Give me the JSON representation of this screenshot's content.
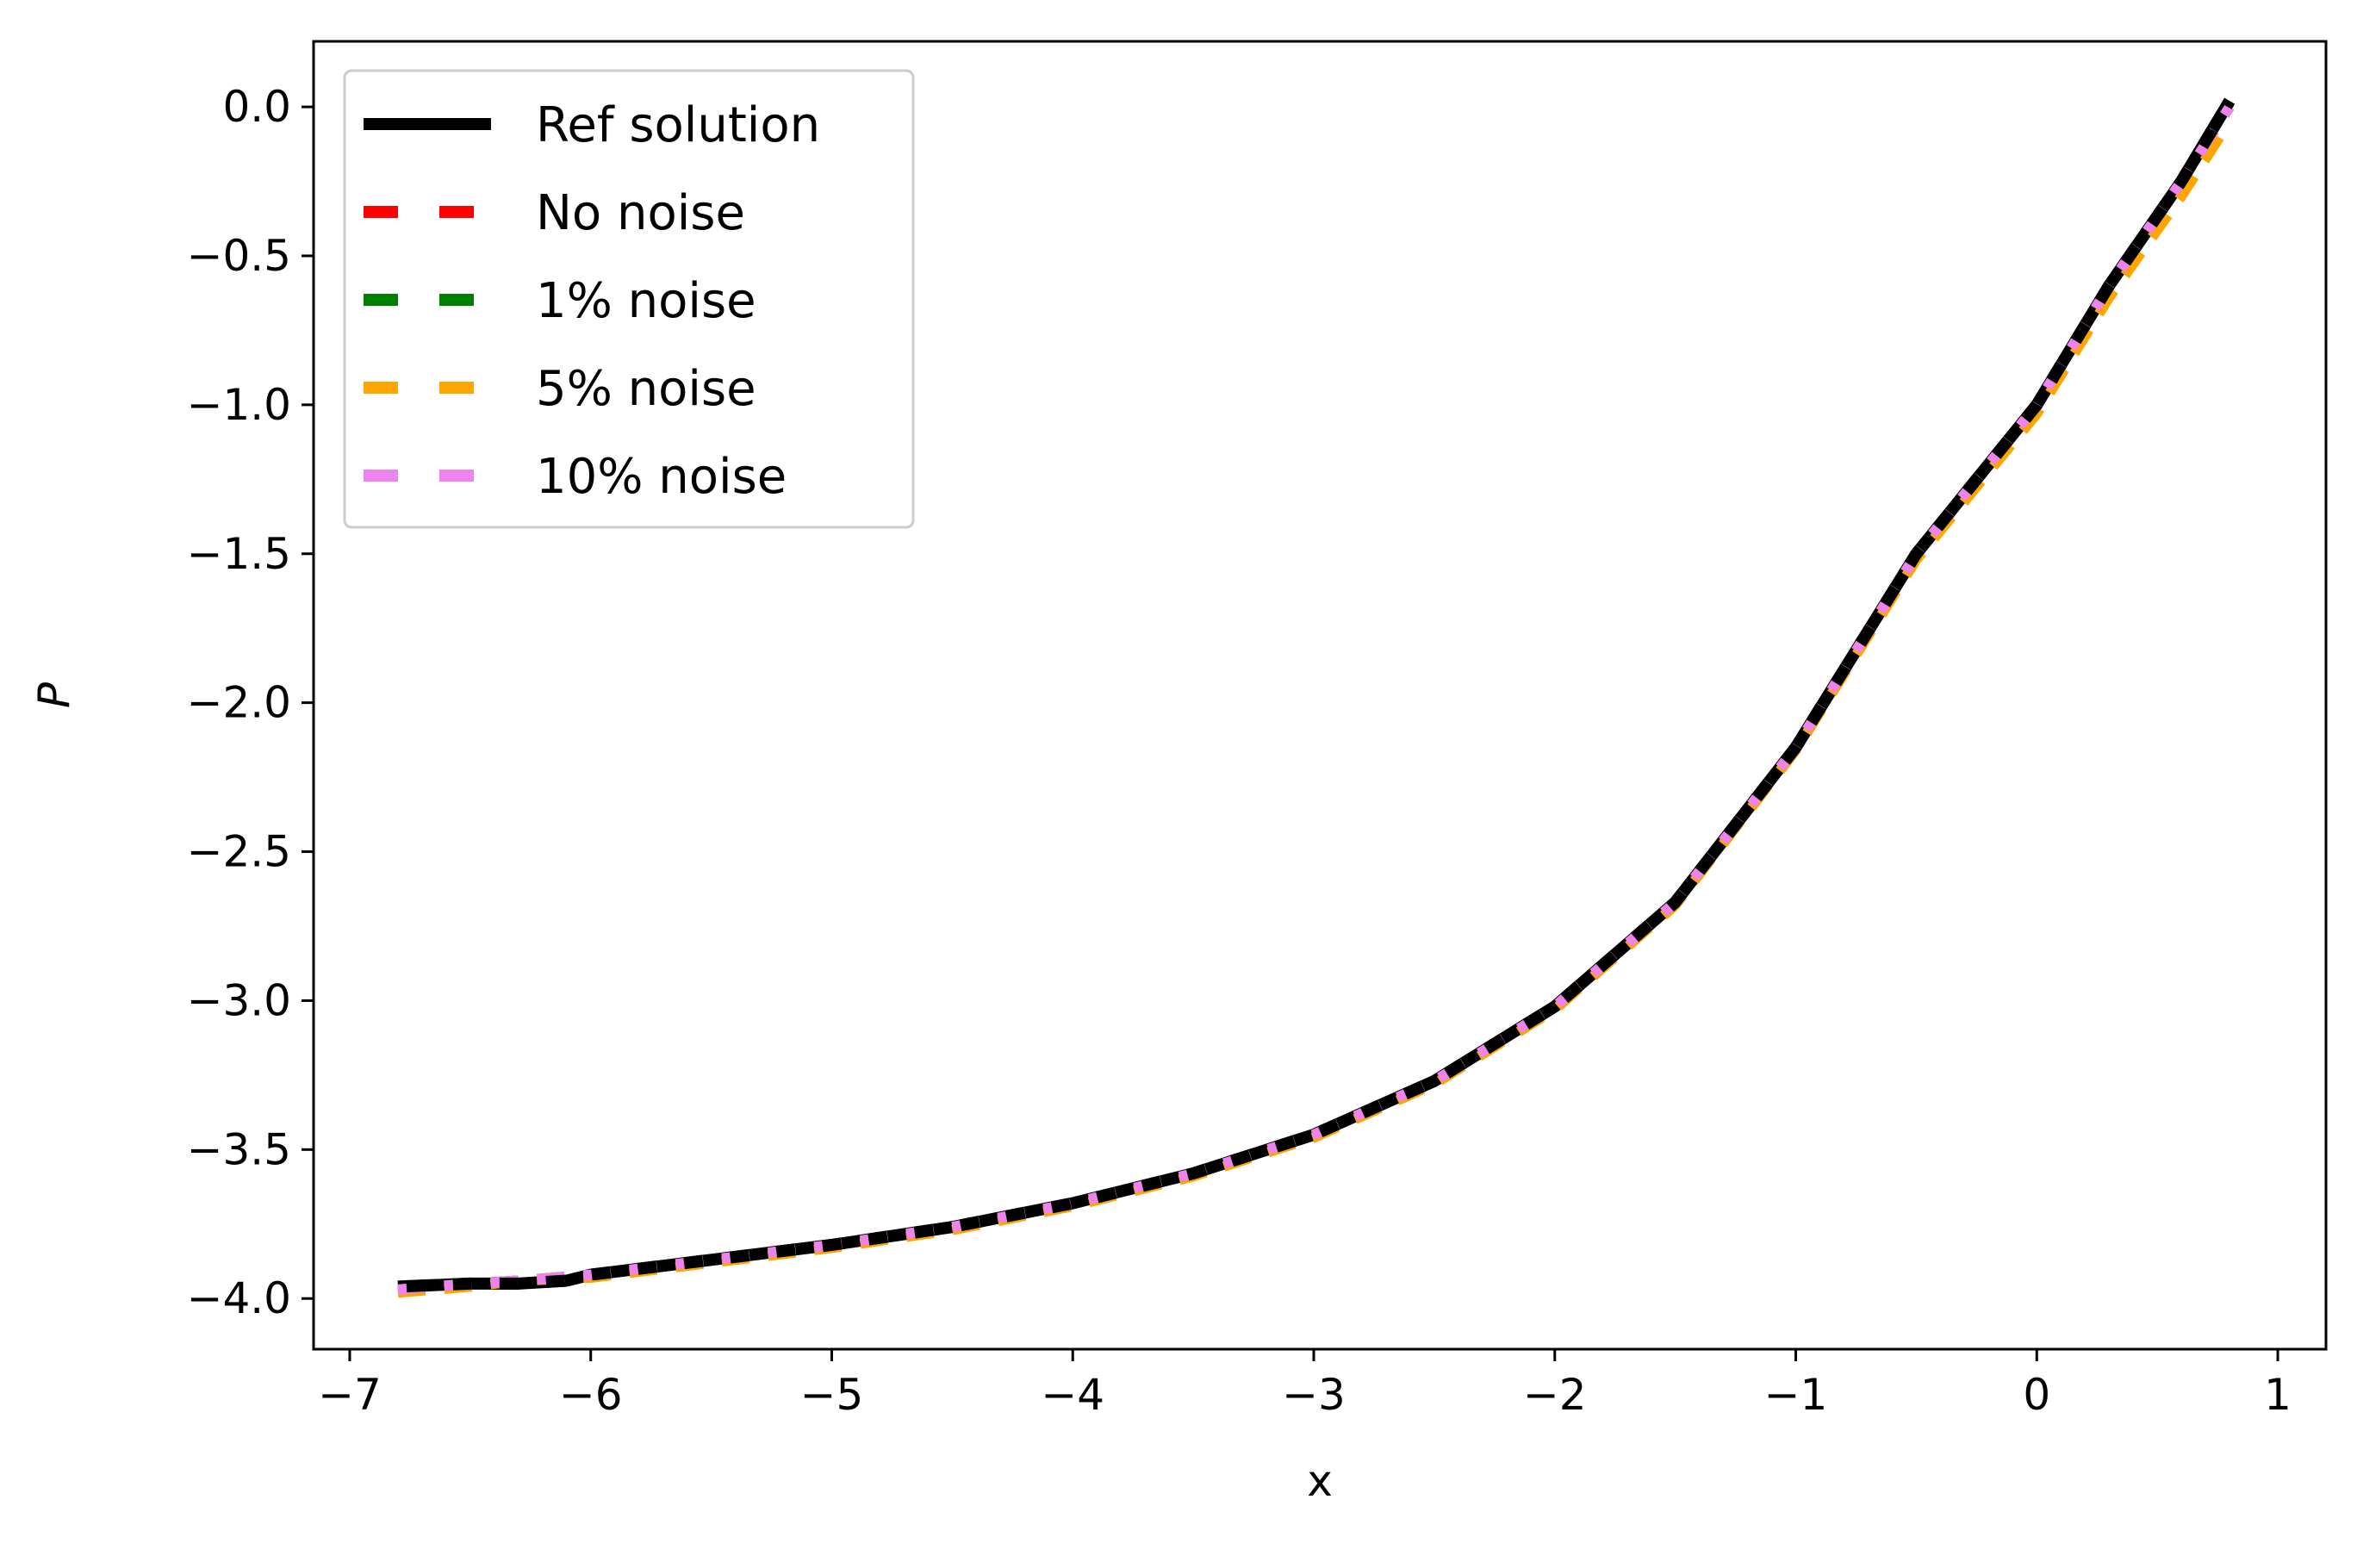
{
  "chart_data": {
    "type": "line",
    "title": "",
    "xlabel": "x",
    "ylabel": "P",
    "xlim": [
      -7.15,
      1.2
    ],
    "ylim": [
      -4.17,
      0.22
    ],
    "xticks": [
      -7,
      -6,
      -5,
      -4,
      -3,
      -2,
      -1,
      0,
      1
    ],
    "xtick_labels": [
      "−7",
      "−6",
      "−5",
      "−4",
      "−3",
      "−2",
      "−1",
      "0",
      "1"
    ],
    "yticks": [
      0.0,
      -0.5,
      -1.0,
      -1.5,
      -2.0,
      -2.5,
      -3.0,
      -3.5,
      -4.0
    ],
    "ytick_labels": [
      "0.0",
      "−0.5",
      "−1.0",
      "−1.5",
      "−2.0",
      "−2.5",
      "−3.0",
      "−3.5",
      "−4.0"
    ],
    "grid": false,
    "legend_position": "top-left",
    "series": [
      {
        "name": "Ref solution",
        "color": "#000000",
        "style": "solid",
        "x": [
          -6.8,
          -6.5,
          -6.3,
          -6.1,
          -6.0,
          -5.5,
          -5.0,
          -4.5,
          -4.0,
          -3.5,
          -3.0,
          -2.5,
          -2.0,
          -1.5,
          -1.0,
          -0.5,
          0.0,
          0.3,
          0.6,
          0.8
        ],
        "y": [
          -3.96,
          -3.95,
          -3.95,
          -3.94,
          -3.92,
          -3.87,
          -3.82,
          -3.76,
          -3.68,
          -3.58,
          -3.45,
          -3.27,
          -3.02,
          -2.67,
          -2.15,
          -1.5,
          -1.0,
          -0.6,
          -0.25,
          0.02
        ]
      },
      {
        "name": "No noise",
        "color": "#ff0000",
        "style": "dashed",
        "x": [
          -6.8,
          -6.5,
          -6.3,
          -6.0,
          -5.5,
          -5.0,
          -4.5,
          -4.0,
          -3.5,
          -3.0,
          -2.5,
          -2.0,
          -1.5,
          -1.0,
          -0.5,
          0.0,
          0.3,
          0.6,
          0.8
        ],
        "y": [
          -3.97,
          -3.95,
          -3.94,
          -3.92,
          -3.87,
          -3.82,
          -3.76,
          -3.68,
          -3.58,
          -3.45,
          -3.27,
          -3.02,
          -2.67,
          -2.15,
          -1.5,
          -1.0,
          -0.6,
          -0.25,
          0.0
        ]
      },
      {
        "name": "1% noise",
        "color": "#008000",
        "style": "dashed",
        "x": [
          -6.8,
          -6.5,
          -6.3,
          -6.0,
          -5.5,
          -5.0,
          -4.5,
          -4.0,
          -3.5,
          -3.0,
          -2.5,
          -2.0,
          -1.5,
          -1.0,
          -0.5,
          0.0,
          0.3,
          0.6,
          0.8
        ],
        "y": [
          -3.97,
          -3.95,
          -3.94,
          -3.92,
          -3.87,
          -3.82,
          -3.76,
          -3.68,
          -3.58,
          -3.45,
          -3.27,
          -3.02,
          -2.67,
          -2.15,
          -1.5,
          -1.0,
          -0.6,
          -0.25,
          0.0
        ]
      },
      {
        "name": "5% noise",
        "color": "#ffa500",
        "style": "dashed",
        "x": [
          -6.8,
          -6.5,
          -6.3,
          -6.0,
          -5.5,
          -5.0,
          -4.5,
          -4.0,
          -3.5,
          -3.0,
          -2.5,
          -2.0,
          -1.5,
          -1.0,
          -0.5,
          0.0,
          0.3,
          0.6,
          0.8
        ],
        "y": [
          -3.98,
          -3.96,
          -3.94,
          -3.93,
          -3.88,
          -3.83,
          -3.77,
          -3.69,
          -3.59,
          -3.46,
          -3.28,
          -3.03,
          -2.68,
          -2.16,
          -1.52,
          -1.03,
          -0.64,
          -0.3,
          -0.05
        ]
      },
      {
        "name": "10% noise",
        "color": "#ee82ee",
        "style": "dashed",
        "x": [
          -6.8,
          -6.5,
          -6.3,
          -6.0,
          -5.5,
          -5.0,
          -4.5,
          -4.0,
          -3.5,
          -3.0,
          -2.5,
          -2.0,
          -1.5,
          -1.0,
          -0.5,
          0.0,
          0.3,
          0.6,
          0.8
        ],
        "y": [
          -3.97,
          -3.95,
          -3.94,
          -3.92,
          -3.87,
          -3.82,
          -3.76,
          -3.68,
          -3.58,
          -3.45,
          -3.27,
          -3.02,
          -2.67,
          -2.15,
          -1.5,
          -1.0,
          -0.6,
          -0.25,
          0.0
        ]
      }
    ]
  }
}
